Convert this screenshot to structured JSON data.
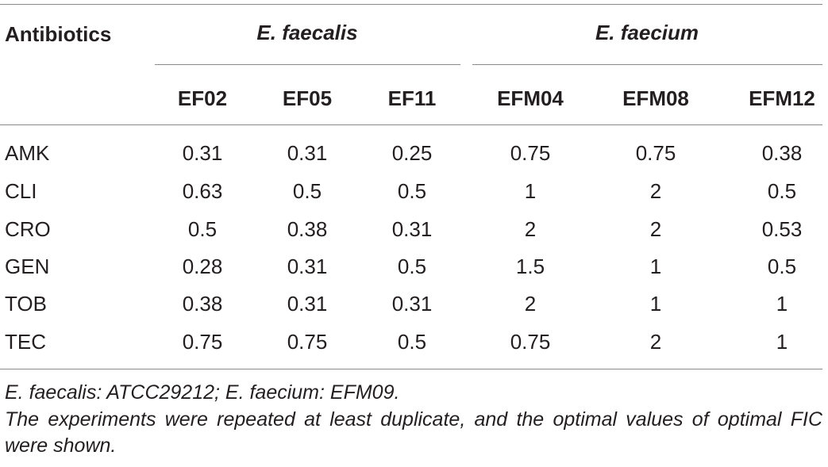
{
  "table": {
    "header": {
      "row_label": "Antibiotics",
      "groups": [
        {
          "name": "E. faecalis",
          "columns": [
            "EF02",
            "EF05",
            "EF11"
          ]
        },
        {
          "name": "E. faecium",
          "columns": [
            "EFM04",
            "EFM08",
            "EFM12"
          ]
        }
      ]
    },
    "rows": [
      {
        "label": "AMK",
        "values": [
          "0.31",
          "0.31",
          "0.25",
          "0.75",
          "0.75",
          "0.38"
        ]
      },
      {
        "label": "CLI",
        "values": [
          "0.63",
          "0.5",
          "0.5",
          "1",
          "2",
          "0.5"
        ]
      },
      {
        "label": "CRO",
        "values": [
          "0.5",
          "0.38",
          "0.31",
          "2",
          "2",
          "0.53"
        ]
      },
      {
        "label": "GEN",
        "values": [
          "0.28",
          "0.31",
          "0.5",
          "1.5",
          "1",
          "0.5"
        ]
      },
      {
        "label": "TOB",
        "values": [
          "0.38",
          "0.31",
          "0.31",
          "2",
          "1",
          "1"
        ]
      },
      {
        "label": "TEC",
        "values": [
          "0.75",
          "0.75",
          "0.5",
          "0.75",
          "2",
          "1"
        ]
      }
    ]
  },
  "footnotes": {
    "line1": "E. faecalis: ATCC29212; E. faecium: EFM09.",
    "line2": "The experiments were repeated at least duplicate, and the optimal values of optimal FIC were shown."
  }
}
